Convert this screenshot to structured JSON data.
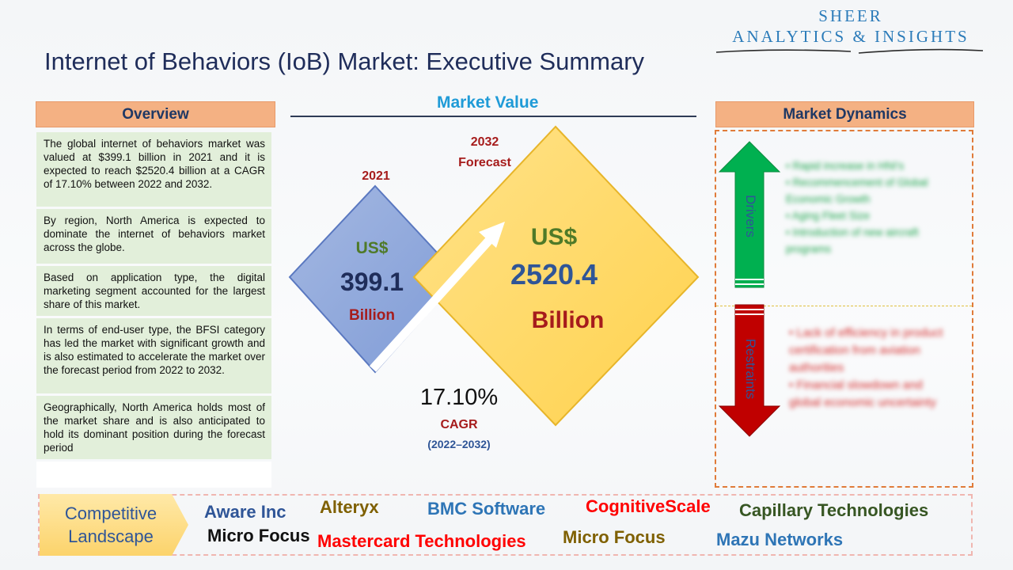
{
  "header": {
    "title": "Internet of Behaviors (IoB) Market: Executive Summary",
    "logo_line1": "SHEER",
    "logo_line2": "ANALYTICS & INSIGHTS"
  },
  "overview": {
    "heading": "Overview",
    "paragraphs": [
      "The global internet of behaviors market was valued at $399.1 billion in 2021 and it is expected to reach $2520.4 billion at a CAGR of 17.10% between 2022 and 2032.",
      "By region, North America is expected to dominate the internet of behaviors market across the globe.",
      "Based on application type, the digital marketing segment accounted for the largest share of this market.",
      "In terms of end-user type, the BFSI category has led the market with significant growth and is also estimated to accelerate the market over the forecast period from 2022 to 2032.",
      "Geographically, North America holds most of the market share and is also anticipated to hold its dominant position during the forecast period"
    ]
  },
  "market_value": {
    "heading": "Market Value",
    "year_2021": "2021",
    "year_2032": "2032",
    "forecast_label": "Forecast",
    "currency": "US$",
    "value_2021": "399.1",
    "value_2032": "2520.4",
    "unit": "Billion",
    "cagr_value": "17.10%",
    "cagr_label": "CAGR",
    "cagr_period": "(2022–2032)"
  },
  "market_dynamics": {
    "heading": "Market Dynamics",
    "drivers_label": "Drivers",
    "restraints_label": "Restraints",
    "drivers": [
      "Rapid increase in HNI's",
      "Recommencement of Global Economic Growth",
      "Aging Fleet Size",
      "Introduction of new aircraft programs"
    ],
    "restraints": [
      "Lack of efficiency in product certification from aviation authorities",
      "Financial slowdown and global economic uncertainty"
    ]
  },
  "competitive": {
    "label_line1": "Competitive",
    "label_line2": "Landscape",
    "companies": [
      "Aware Inc",
      "Alteryx",
      "BMC Software",
      "CognitiveScale",
      "Capillary Technologies",
      "Micro Focus",
      "Mastercard Technologies",
      "Micro Focus",
      "Mazu Networks"
    ]
  },
  "colors": {
    "title": "#1f2d5a",
    "overview_bg": "#e2efda",
    "header_bg": "#f4b183",
    "diamond_2021": "#8ea9db",
    "diamond_2032": "#ffd966",
    "drivers_arrow": "#00b050",
    "restraints_arrow": "#c00000",
    "accent_blue": "#1f9bd7"
  },
  "icons": [
    "growth-arrow-icon",
    "up-arrow-icon",
    "down-arrow-icon",
    "chevron-right-icon"
  ]
}
